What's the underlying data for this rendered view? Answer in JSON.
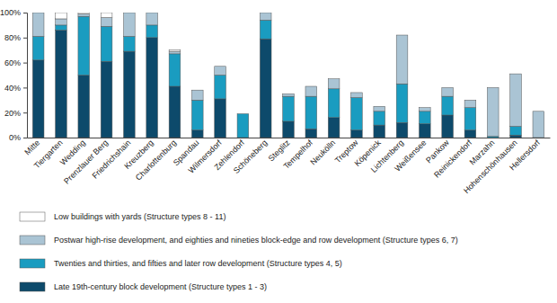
{
  "chart_data": {
    "type": "bar",
    "stacked": true,
    "grid": false,
    "legend": "bottom",
    "categories": [
      "Mitte",
      "Tiergarten",
      "Wedding",
      "Prenzlauer Berg",
      "Friedrichshain",
      "Kreuzberg",
      "Charlottenburg",
      "Spandau",
      "Wilmersdorf",
      "Zehlendorf",
      "Schöneberg",
      "Steglitz",
      "Tempelhof",
      "Neukölln",
      "Treptow",
      "Köpenick",
      "Lichtenberg",
      "Weißensee",
      "Pankow",
      "Reinickendorf",
      "Marzahn",
      "Hohenschönhausen",
      "Hellersdorf"
    ],
    "ylim": [
      0,
      100
    ],
    "yticks": [
      {
        "value": 0,
        "label": "0%"
      },
      {
        "value": 20,
        "label": "20%"
      },
      {
        "value": 40,
        "label": "40%"
      },
      {
        "value": 60,
        "label": "60%"
      },
      {
        "value": 80,
        "label": "80%"
      },
      {
        "value": 100,
        "label": "100%"
      }
    ],
    "series": [
      {
        "name": "Late 19th-century block development (Structure types 1 - 3)",
        "color": "#0d4a6b",
        "values": [
          62,
          86,
          50,
          61,
          69,
          80,
          41,
          6,
          31,
          0,
          79,
          13,
          7,
          16,
          6,
          10,
          12,
          11,
          18,
          6,
          0,
          2,
          0
        ]
      },
      {
        "name": "Twenties and thirties, and fifties and later row development (Structure types 4, 5)",
        "color": "#1a9cc0",
        "values": [
          19,
          4,
          47,
          28,
          12,
          10,
          26,
          24,
          19,
          19,
          15,
          20,
          26,
          23,
          26,
          11,
          31,
          10,
          15,
          18,
          1,
          7,
          0
        ]
      },
      {
        "name": "Postwar high-rise development, and eighties and nineties block-edge and row development (Structure types 6, 7)",
        "color": "#aac4d4",
        "values": [
          19,
          5,
          2,
          7,
          19,
          10,
          2,
          8,
          7,
          0,
          6,
          2,
          8,
          8,
          4,
          4,
          39,
          3,
          7,
          6,
          39,
          42,
          21
        ]
      },
      {
        "name": "Low buildings with yards (Structure types 8 - 11)",
        "color": "#ffffff",
        "values": [
          0,
          5,
          1,
          4,
          0,
          0,
          1,
          0,
          0,
          0,
          0,
          0,
          0,
          0,
          0,
          0,
          0,
          0,
          0,
          0,
          0,
          0,
          0
        ]
      }
    ]
  }
}
